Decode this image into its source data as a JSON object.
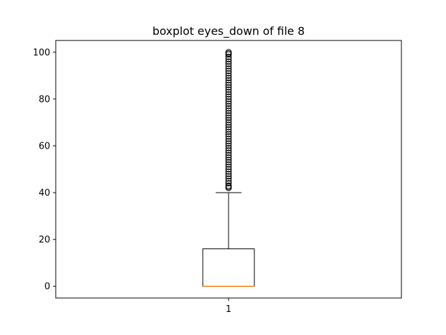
{
  "chart_data": {
    "type": "boxplot",
    "title": "boxplot eyes_down of file 8",
    "xlabel": "",
    "ylabel": "",
    "categories": [
      "1"
    ],
    "ylim": [
      -5,
      105
    ],
    "yticks": [
      0,
      20,
      40,
      60,
      80,
      100
    ],
    "grid": false,
    "boxes": [
      {
        "category": "1",
        "whisker_low": 0,
        "q1": 0,
        "median": 0,
        "q3": 16,
        "whisker_high": 40,
        "outliers": [
          42,
          42.5,
          43,
          44,
          45,
          46,
          47,
          48,
          49,
          50,
          51,
          52,
          53,
          54,
          55,
          56,
          57,
          58,
          59,
          60,
          61,
          62,
          63,
          64,
          65,
          66,
          67,
          68,
          69,
          70,
          71,
          72,
          73,
          74,
          75,
          76,
          77,
          78,
          79,
          80,
          81,
          82,
          83,
          84,
          85,
          86,
          87,
          88,
          89,
          90,
          91,
          92,
          93,
          94,
          95,
          96,
          97,
          98,
          99,
          99.5,
          100
        ]
      }
    ],
    "colors": {
      "box": "#000000",
      "median": "#ff7f0e",
      "outlier": "#000000"
    }
  }
}
